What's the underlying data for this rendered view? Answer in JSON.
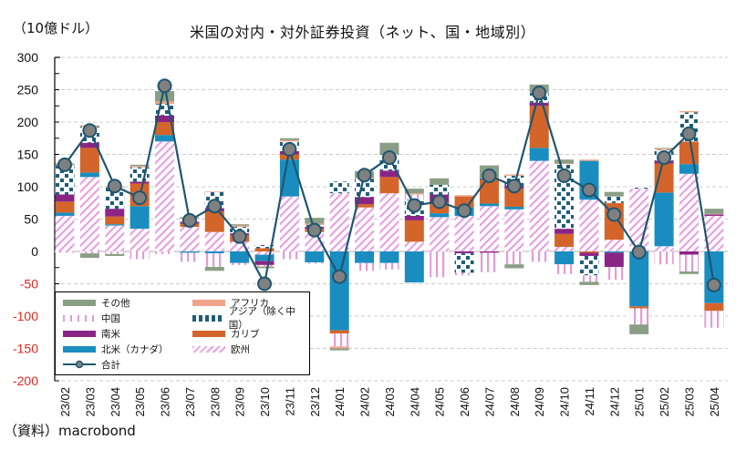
{
  "unit_label": "（10億ドル）",
  "title": "米国の対内・対外証券投資（ネット、国・地域別）",
  "source": "（資料）macrobond",
  "colors": {
    "other": "#8a9e85",
    "africa": "#efa58c",
    "china": "#e39ad9",
    "asia_ex_china": "#1e5d7a",
    "south_america": "#8b2585",
    "caribbean": "#d4652a",
    "north_america_canada": "#1a8dc0",
    "europe": "#e8a0e0",
    "total": "#1e5670",
    "total_marker": "#808080",
    "negative_tick": "#e8261f",
    "grid": "#cccccc"
  },
  "legend": [
    {
      "key": "other",
      "label": "その他"
    },
    {
      "key": "africa",
      "label": "アフリカ"
    },
    {
      "key": "china",
      "label": "中国"
    },
    {
      "key": "asia_ex_china",
      "label": "アジア（除く中国）"
    },
    {
      "key": "south_america",
      "label": "南米"
    },
    {
      "key": "caribbean",
      "label": "カリブ"
    },
    {
      "key": "north_america_canada",
      "label": "北米（カナダ）"
    },
    {
      "key": "europe",
      "label": "欧州"
    },
    {
      "key": "total",
      "label": "合計"
    }
  ],
  "chart_data": {
    "type": "bar",
    "stacked": true,
    "title": "米国の対内・対外証券投資（ネット、国・地域別）",
    "ylabel": "（10億ドル）",
    "xlabel": "",
    "ylim": [
      -200,
      300
    ],
    "yticks": [
      300,
      250,
      200,
      150,
      100,
      50,
      0,
      -50,
      -100,
      -150,
      -200
    ],
    "grid": true,
    "legend_position": "bottom-left",
    "categories": [
      "23/02",
      "23/03",
      "23/04",
      "23/05",
      "23/06",
      "23/07",
      "23/08",
      "23/09",
      "23/10",
      "23/11",
      "23/12",
      "24/01",
      "24/02",
      "24/03",
      "24/04",
      "24/05",
      "24/06",
      "24/07",
      "24/08",
      "24/09",
      "24/10",
      "24/11",
      "24/12",
      "25/01",
      "25/02",
      "25/03",
      "25/04"
    ],
    "series": [
      {
        "key": "europe",
        "name": "欧州",
        "values": [
          55,
          115,
          40,
          35,
          170,
          38,
          30,
          15,
          -5,
          85,
          30,
          90,
          68,
          90,
          15,
          53,
          55,
          70,
          65,
          140,
          7,
          80,
          18,
          97,
          8,
          120,
          55
        ]
      },
      {
        "key": "north_america_canada",
        "name": "北米（カナダ）",
        "values": [
          5,
          7,
          2,
          35,
          10,
          -2,
          -3,
          -18,
          -10,
          57,
          -17,
          -122,
          -18,
          -18,
          -48,
          6,
          13,
          4,
          4,
          20,
          -20,
          60,
          -2,
          -85,
          83,
          15,
          -80
        ]
      },
      {
        "key": "caribbean",
        "name": "カリブ",
        "values": [
          17,
          38,
          12,
          35,
          20,
          5,
          32,
          10,
          5,
          8,
          5,
          -5,
          5,
          25,
          33,
          16,
          17,
          37,
          28,
          65,
          20,
          -2,
          57,
          -3,
          45,
          35,
          -12
        ]
      },
      {
        "key": "south_america",
        "name": "南米",
        "values": [
          11,
          8,
          12,
          3,
          10,
          3,
          5,
          3,
          -6,
          5,
          3,
          0,
          11,
          10,
          7,
          13,
          -3,
          -2,
          5,
          5,
          8,
          -5,
          -22,
          0,
          4,
          -5,
          2
        ]
      },
      {
        "key": "asia_ex_china",
        "name": "アジア（除く中国）",
        "values": [
          45,
          25,
          33,
          22,
          18,
          4,
          25,
          10,
          5,
          15,
          3,
          18,
          28,
          25,
          25,
          15,
          -30,
          2,
          15,
          15,
          100,
          -30,
          10,
          3,
          17,
          45,
          0
        ]
      },
      {
        "key": "china",
        "name": "中国",
        "values": [
          -2,
          -3,
          -4,
          -12,
          -4,
          -14,
          -21,
          -3,
          -2,
          -12,
          -2,
          -20,
          -12,
          -10,
          8,
          -40,
          -4,
          -30,
          -20,
          -16,
          -15,
          -10,
          -20,
          -25,
          -20,
          -26,
          -26
        ]
      },
      {
        "key": "africa",
        "name": "アフリカ",
        "values": [
          1,
          2,
          2,
          2,
          4,
          1,
          1,
          2,
          -1,
          2,
          2,
          -3,
          2,
          0,
          2,
          0,
          2,
          0,
          2,
          1,
          1,
          2,
          0,
          0,
          2,
          2,
          1
        ]
      },
      {
        "key": "other",
        "name": "その他",
        "values": [
          2,
          -7,
          -3,
          2,
          16,
          2,
          -6,
          2,
          -2,
          3,
          9,
          -3,
          10,
          18,
          7,
          10,
          0,
          20,
          -6,
          12,
          6,
          -5,
          7,
          -15,
          1,
          -4,
          8
        ]
      }
    ],
    "total": {
      "key": "total",
      "name": "合計",
      "values": [
        134,
        187,
        101,
        83,
        256,
        48,
        70,
        23,
        -50,
        158,
        33,
        -39,
        118,
        145,
        71,
        77,
        63,
        117,
        101,
        245,
        117,
        95,
        57,
        -1,
        145,
        182,
        -52
      ]
    }
  }
}
